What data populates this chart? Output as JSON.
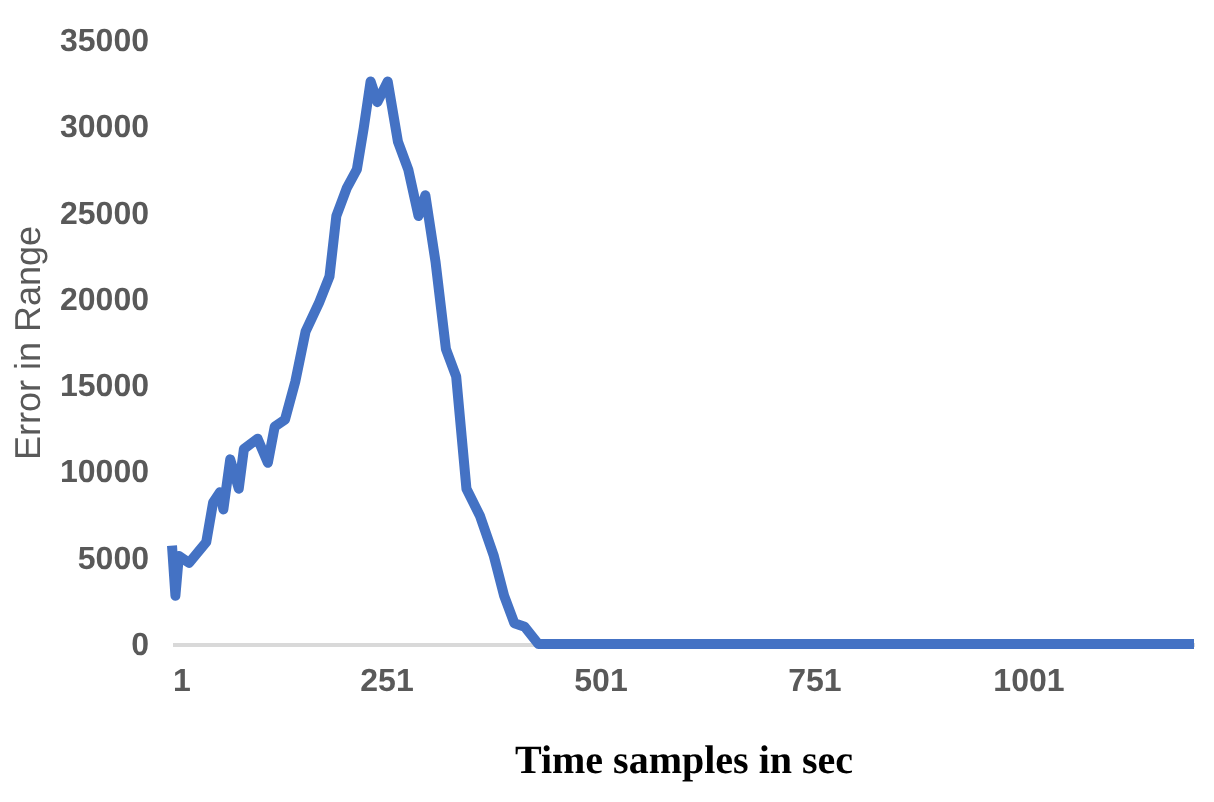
{
  "chart_data": {
    "type": "line",
    "xlabel": "Time samples in sec",
    "ylabel": "Error in Range",
    "x": [
      1,
      5,
      9,
      21,
      41,
      49,
      57,
      61,
      69,
      79,
      85,
      101,
      113,
      121,
      133,
      145,
      157,
      173,
      185,
      193,
      205,
      217,
      225,
      233,
      241,
      253,
      265,
      277,
      289,
      297,
      309,
      321,
      333,
      345,
      361,
      377,
      389,
      401,
      413,
      429,
      461,
      600,
      800,
      1000,
      1195
    ],
    "series": [
      {
        "color": "#4472c4",
        "values": [
          5700,
          2800,
          5100,
          4700,
          5900,
          8200,
          8800,
          7800,
          10700,
          9000,
          11300,
          11900,
          10500,
          12600,
          13000,
          15200,
          18100,
          19800,
          21300,
          24800,
          26400,
          27500,
          29900,
          32600,
          31400,
          32600,
          29100,
          27500,
          24800,
          26000,
          22100,
          17100,
          15500,
          9000,
          7400,
          5100,
          2800,
          1200,
          1000,
          0,
          0,
          0,
          0,
          0,
          0
        ]
      }
    ],
    "xlim": [
      1,
      1195
    ],
    "xticks": [
      1,
      251,
      501,
      751,
      1001
    ],
    "ylim": [
      0,
      35000
    ],
    "yticks": [
      0,
      5000,
      10000,
      15000,
      20000,
      25000,
      30000,
      35000
    ],
    "grid": false,
    "legend": false,
    "marker": "none",
    "line_style": "solid"
  }
}
